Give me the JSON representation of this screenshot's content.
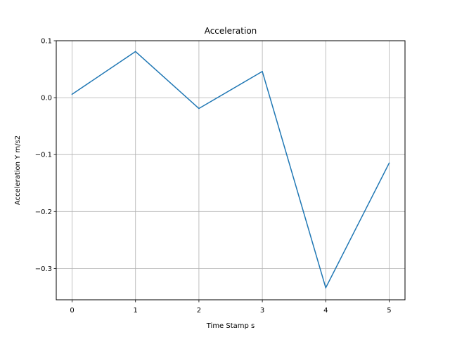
{
  "chart_data": {
    "type": "line",
    "title": "Acceleration",
    "xlabel": "Time Stamp s",
    "ylabel": "Acceleration Y m/s2",
    "x": [
      0,
      1,
      2,
      3,
      4,
      5
    ],
    "series": [
      {
        "values": [
          0.006,
          0.081,
          -0.019,
          0.046,
          -0.334,
          -0.115
        ],
        "color": "#1f77b4"
      }
    ],
    "xlim": [
      -0.25,
      5.25
    ],
    "ylim": [
      -0.355,
      0.1
    ],
    "xticks": [
      0,
      1,
      2,
      3,
      4,
      5
    ],
    "xtick_labels": [
      "0",
      "1",
      "2",
      "3",
      "4",
      "5"
    ],
    "yticks": [
      0.1,
      0.0,
      -0.1,
      -0.2,
      -0.3
    ],
    "ytick_labels": [
      "0.1",
      "0.0",
      "−0.1",
      "−0.2",
      "−0.3"
    ],
    "grid": true,
    "legend": "none"
  }
}
